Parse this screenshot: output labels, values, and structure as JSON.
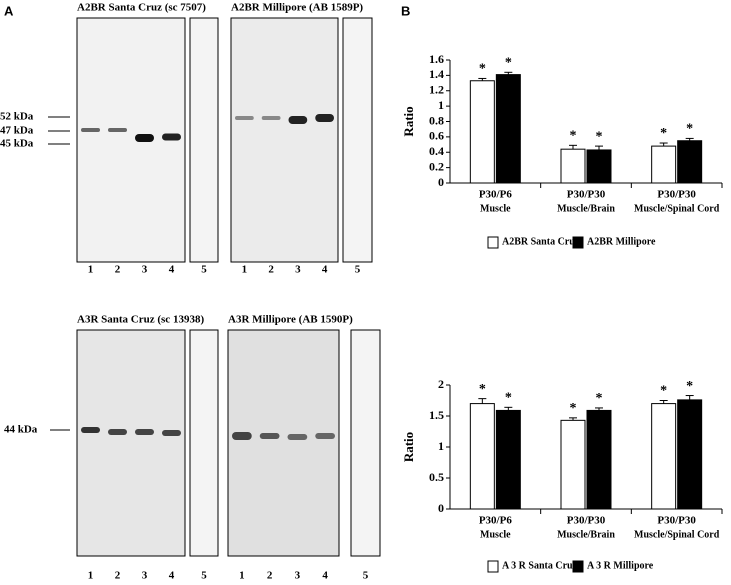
{
  "panel_labels": [
    "A",
    "B"
  ],
  "blots": [
    {
      "title": "A2BR Santa Cruz (sc 7507)",
      "lanes": [
        "1",
        "2",
        "3",
        "4",
        "5"
      ]
    },
    {
      "title": "A2BR Millipore (AB 1589P)",
      "lanes": [
        "1",
        "2",
        "3",
        "4",
        "5"
      ]
    },
    {
      "title": "A3R Santa Cruz (sc 13938)",
      "lanes": [
        "1",
        "2",
        "3",
        "4",
        "5"
      ]
    },
    {
      "title": "A3R Millipore (AB 1590P)",
      "lanes": [
        "1",
        "2",
        "3",
        "4",
        "5"
      ]
    }
  ],
  "size_markers_top": [
    "52 kDa",
    "47 kDa",
    "45 kDa"
  ],
  "size_markers_bottom": [
    "44 kDa"
  ],
  "chart_data": [
    {
      "type": "bar",
      "y_label": "Ratio",
      "categories": [
        [
          "P30/P6",
          "Muscle"
        ],
        [
          "P30/P30",
          "Muscle/Brain"
        ],
        [
          "P30/P30",
          "Muscle/Spinal Cord"
        ]
      ],
      "ylim": [
        0,
        1.6
      ],
      "yticks": [
        0,
        0.2,
        0.4,
        0.6,
        0.8,
        1,
        1.2,
        1.4,
        1.6
      ],
      "series": [
        {
          "name": "A2BR Santa Cruz",
          "color": "#ffffff",
          "values": [
            1.33,
            0.44,
            0.48
          ],
          "errors": [
            0.03,
            0.05,
            0.04
          ],
          "markers": [
            "*",
            "*",
            "*"
          ]
        },
        {
          "name": "A2BR Millipore",
          "color": "#000000",
          "values": [
            1.41,
            0.43,
            0.55
          ],
          "errors": [
            0.03,
            0.05,
            0.03
          ],
          "markers": [
            "*",
            "*",
            "*"
          ]
        }
      ]
    },
    {
      "type": "bar",
      "y_label": "Ratio",
      "categories": [
        [
          "P30/P6",
          "Muscle"
        ],
        [
          "P30/P30",
          "Muscle/Brain"
        ],
        [
          "P30/P30",
          "Muscle/Spinal Cord"
        ]
      ],
      "ylim": [
        0,
        2
      ],
      "yticks": [
        0,
        0.5,
        1,
        1.5,
        2
      ],
      "series": [
        {
          "name": "A 3 R Santa Cruz",
          "color": "#ffffff",
          "values": [
            1.7,
            1.43,
            1.7
          ],
          "errors": [
            0.08,
            0.04,
            0.05
          ],
          "markers": [
            "*",
            "*",
            "*"
          ]
        },
        {
          "name": "A 3 R Millipore",
          "color": "#000000",
          "values": [
            1.59,
            1.59,
            1.76
          ],
          "errors": [
            0.05,
            0.04,
            0.07
          ],
          "markers": [
            "*",
            "*",
            "*"
          ]
        }
      ]
    }
  ]
}
